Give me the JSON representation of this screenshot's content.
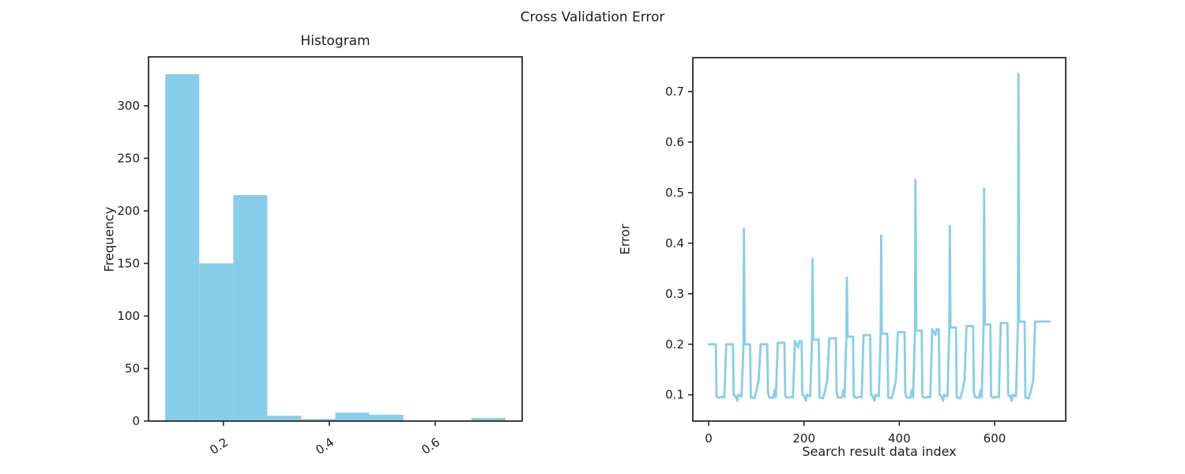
{
  "figure": {
    "suptitle": "Cross Validation Error",
    "background": "#ffffff",
    "accent_color": "#87CEEB",
    "text_color": "#1c1c1c",
    "spine_color": "#2a2a2a"
  },
  "chart_data": [
    {
      "id": "histogram",
      "type": "bar",
      "title": "Histogram",
      "xlabel": "",
      "ylabel": "Frequency",
      "bar_color": "#87CEEB",
      "bin_edges": [
        0.09,
        0.1543,
        0.2186,
        0.2829,
        0.3471,
        0.4114,
        0.4757,
        0.54,
        0.6043,
        0.6686,
        0.7329
      ],
      "counts": [
        330,
        150,
        215,
        5,
        2,
        8,
        6,
        0,
        0,
        3
      ],
      "xlim": [
        0.0585,
        0.7645
      ],
      "ylim": [
        0,
        346.5
      ],
      "xticks": [
        0.2,
        0.4,
        0.6
      ],
      "xtick_labels": [
        "0.2",
        "0.4",
        "0.6"
      ],
      "xtick_rotation": -35,
      "yticks": [
        0,
        50,
        100,
        150,
        200,
        250,
        300
      ],
      "ytick_labels": [
        "0",
        "50",
        "100",
        "150",
        "200",
        "250",
        "300"
      ],
      "grid": false,
      "legend": null
    },
    {
      "id": "cv-error",
      "type": "line",
      "title": "",
      "xlabel": "Search result data index",
      "ylabel": "Error",
      "line_color": "#87CEEB",
      "line_width": 2.8,
      "xlim": [
        -33.2,
        749.2
      ],
      "ylim": [
        0.048,
        0.767
      ],
      "xticks": [
        0,
        200,
        400,
        600
      ],
      "xtick_labels": [
        "0",
        "200",
        "400",
        "600"
      ],
      "xtick_rotation": 0,
      "yticks": [
        0.1,
        0.2,
        0.3,
        0.4,
        0.5,
        0.6,
        0.7
      ],
      "ytick_labels": [
        "0.1",
        "0.2",
        "0.3",
        "0.4",
        "0.5",
        "0.6",
        "0.7"
      ],
      "grid": false,
      "legend": null,
      "points": [
        [
          0,
          0.2
        ],
        [
          15,
          0.2
        ],
        [
          16.5,
          0.097
        ],
        [
          22,
          0.094
        ],
        [
          28,
          0.096
        ],
        [
          33,
          0.095
        ],
        [
          37,
          0.2
        ],
        [
          51,
          0.2
        ],
        [
          52.5,
          0.1
        ],
        [
          56,
          0.098
        ],
        [
          60,
          0.088
        ],
        [
          62,
          0.1
        ],
        [
          69,
          0.097
        ],
        [
          73,
          0.2
        ],
        [
          74,
          0.428
        ],
        [
          75.5,
          0.2
        ],
        [
          87,
          0.2
        ],
        [
          88.5,
          0.095
        ],
        [
          96,
          0.093
        ],
        [
          102,
          0.115
        ],
        [
          105,
          0.13
        ],
        [
          109,
          0.2
        ],
        [
          123,
          0.2
        ],
        [
          124.5,
          0.105
        ],
        [
          127,
          0.095
        ],
        [
          135,
          0.094
        ],
        [
          139,
          0.11
        ],
        [
          141,
          0.095
        ],
        [
          145,
          0.203
        ],
        [
          159,
          0.203
        ],
        [
          160.5,
          0.097
        ],
        [
          166,
          0.094
        ],
        [
          172,
          0.096
        ],
        [
          177,
          0.095
        ],
        [
          181,
          0.206
        ],
        [
          188,
          0.194
        ],
        [
          190,
          0.206
        ],
        [
          195,
          0.206
        ],
        [
          196.5,
          0.1
        ],
        [
          200,
          0.098
        ],
        [
          204,
          0.088
        ],
        [
          206,
          0.1
        ],
        [
          213,
          0.097
        ],
        [
          217,
          0.209
        ],
        [
          218,
          0.369
        ],
        [
          219.5,
          0.209
        ],
        [
          231,
          0.209
        ],
        [
          232.5,
          0.095
        ],
        [
          240,
          0.093
        ],
        [
          246,
          0.115
        ],
        [
          249,
          0.13
        ],
        [
          253,
          0.212
        ],
        [
          267,
          0.212
        ],
        [
          268.5,
          0.105
        ],
        [
          271,
          0.095
        ],
        [
          279,
          0.094
        ],
        [
          283,
          0.11
        ],
        [
          285,
          0.095
        ],
        [
          289,
          0.215
        ],
        [
          290,
          0.332
        ],
        [
          291.5,
          0.215
        ],
        [
          303,
          0.215
        ],
        [
          304.5,
          0.097
        ],
        [
          310,
          0.094
        ],
        [
          316,
          0.096
        ],
        [
          321,
          0.095
        ],
        [
          325,
          0.218
        ],
        [
          339,
          0.218
        ],
        [
          340.5,
          0.1
        ],
        [
          344,
          0.098
        ],
        [
          348,
          0.088
        ],
        [
          350,
          0.1
        ],
        [
          357,
          0.097
        ],
        [
          361,
          0.221
        ],
        [
          362,
          0.415
        ],
        [
          363.5,
          0.221
        ],
        [
          375,
          0.221
        ],
        [
          376.5,
          0.095
        ],
        [
          384,
          0.093
        ],
        [
          390,
          0.115
        ],
        [
          393,
          0.13
        ],
        [
          397,
          0.224
        ],
        [
          411,
          0.224
        ],
        [
          412.5,
          0.105
        ],
        [
          415,
          0.095
        ],
        [
          423,
          0.094
        ],
        [
          427,
          0.11
        ],
        [
          429,
          0.095
        ],
        [
          433,
          0.227
        ],
        [
          434,
          0.525
        ],
        [
          435.5,
          0.227
        ],
        [
          447,
          0.227
        ],
        [
          448.5,
          0.097
        ],
        [
          454,
          0.094
        ],
        [
          460,
          0.096
        ],
        [
          465,
          0.095
        ],
        [
          469,
          0.23
        ],
        [
          476,
          0.218
        ],
        [
          478,
          0.23
        ],
        [
          483,
          0.23
        ],
        [
          484.5,
          0.1
        ],
        [
          488,
          0.098
        ],
        [
          492,
          0.088
        ],
        [
          494,
          0.1
        ],
        [
          501,
          0.097
        ],
        [
          505,
          0.233
        ],
        [
          506,
          0.434
        ],
        [
          507.5,
          0.233
        ],
        [
          519,
          0.233
        ],
        [
          520.5,
          0.095
        ],
        [
          528,
          0.093
        ],
        [
          534,
          0.115
        ],
        [
          537,
          0.13
        ],
        [
          541,
          0.236
        ],
        [
          555,
          0.236
        ],
        [
          556.5,
          0.105
        ],
        [
          559,
          0.095
        ],
        [
          567,
          0.094
        ],
        [
          571,
          0.11
        ],
        [
          573,
          0.095
        ],
        [
          577,
          0.239
        ],
        [
          578,
          0.508
        ],
        [
          579.5,
          0.239
        ],
        [
          591,
          0.239
        ],
        [
          592.5,
          0.097
        ],
        [
          598,
          0.094
        ],
        [
          604,
          0.096
        ],
        [
          609,
          0.095
        ],
        [
          613,
          0.242
        ],
        [
          627,
          0.242
        ],
        [
          628.5,
          0.1
        ],
        [
          632,
          0.098
        ],
        [
          636,
          0.088
        ],
        [
          638,
          0.1
        ],
        [
          645,
          0.097
        ],
        [
          649,
          0.245
        ],
        [
          650,
          0.735
        ],
        [
          651.5,
          0.245
        ],
        [
          663,
          0.245
        ],
        [
          664.5,
          0.095
        ],
        [
          672,
          0.093
        ],
        [
          678,
          0.115
        ],
        [
          681,
          0.13
        ],
        [
          685,
          0.245
        ],
        [
          716,
          0.245
        ]
      ]
    }
  ]
}
